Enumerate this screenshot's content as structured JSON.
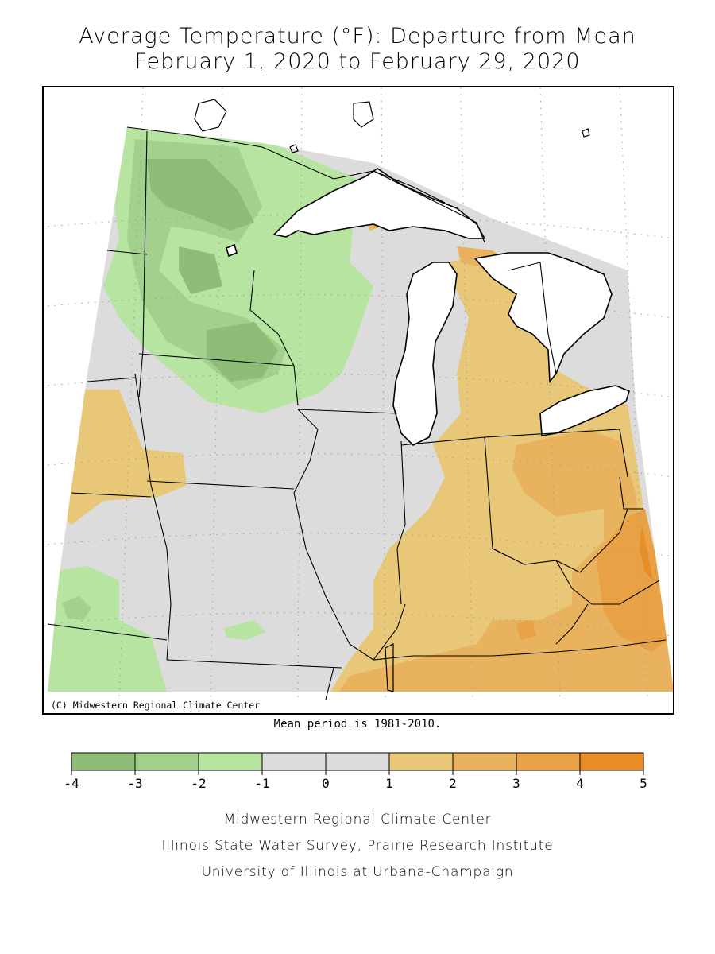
{
  "title_line1": "Average Temperature (°F): Departure from Mean",
  "title_line2": "February 1, 2020 to February 29, 2020",
  "copyright": "(C) Midwestern Regional Climate Center",
  "mean_note": "Mean period is 1981-2010.",
  "legend": {
    "ticks": [
      "-4",
      "-3",
      "-2",
      "-1",
      "0",
      "1",
      "2",
      "3",
      "4",
      "5"
    ],
    "bins": [
      {
        "range": "-4 to -3",
        "color": "#8fbd77"
      },
      {
        "range": "-3 to -2",
        "color": "#a3d08c"
      },
      {
        "range": "-2 to -1",
        "color": "#b7e4a0"
      },
      {
        "range": "-1 to 0",
        "color": "#dcdcdc"
      },
      {
        "range": "0 to 1",
        "color": "#dcdcdc"
      },
      {
        "range": "1 to 2",
        "color": "#e8c878"
      },
      {
        "range": "2 to 3",
        "color": "#e8b25e"
      },
      {
        "range": "3 to 4",
        "color": "#e8a144"
      },
      {
        "range": "4 to 5",
        "color": "#e88e24"
      }
    ]
  },
  "credits": [
    "Midwestern Regional Climate Center",
    "Illinois State Water Survey, Prairie Research Institute",
    "University of Illinois at Urbana-Champaign"
  ]
}
